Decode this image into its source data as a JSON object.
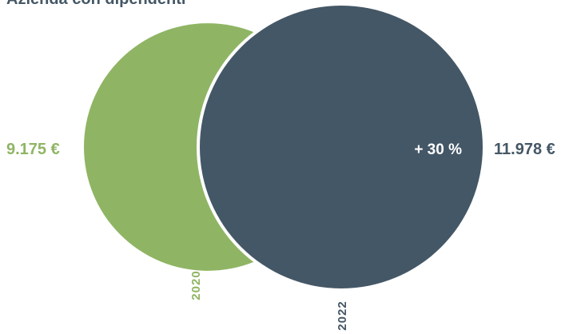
{
  "chart_data": {
    "type": "area",
    "title": "Azienda con dipendenti",
    "series": [
      {
        "name": "2020",
        "value": 9175,
        "value_label": "9.175 €",
        "color": "#8fb564"
      },
      {
        "name": "2022",
        "value": 11978,
        "value_label": "11.978 €",
        "color": "#445766"
      }
    ],
    "change_label": "+ 30 %",
    "change_color": "#ffffff",
    "title_color": "#445766",
    "background": "#ffffff"
  }
}
